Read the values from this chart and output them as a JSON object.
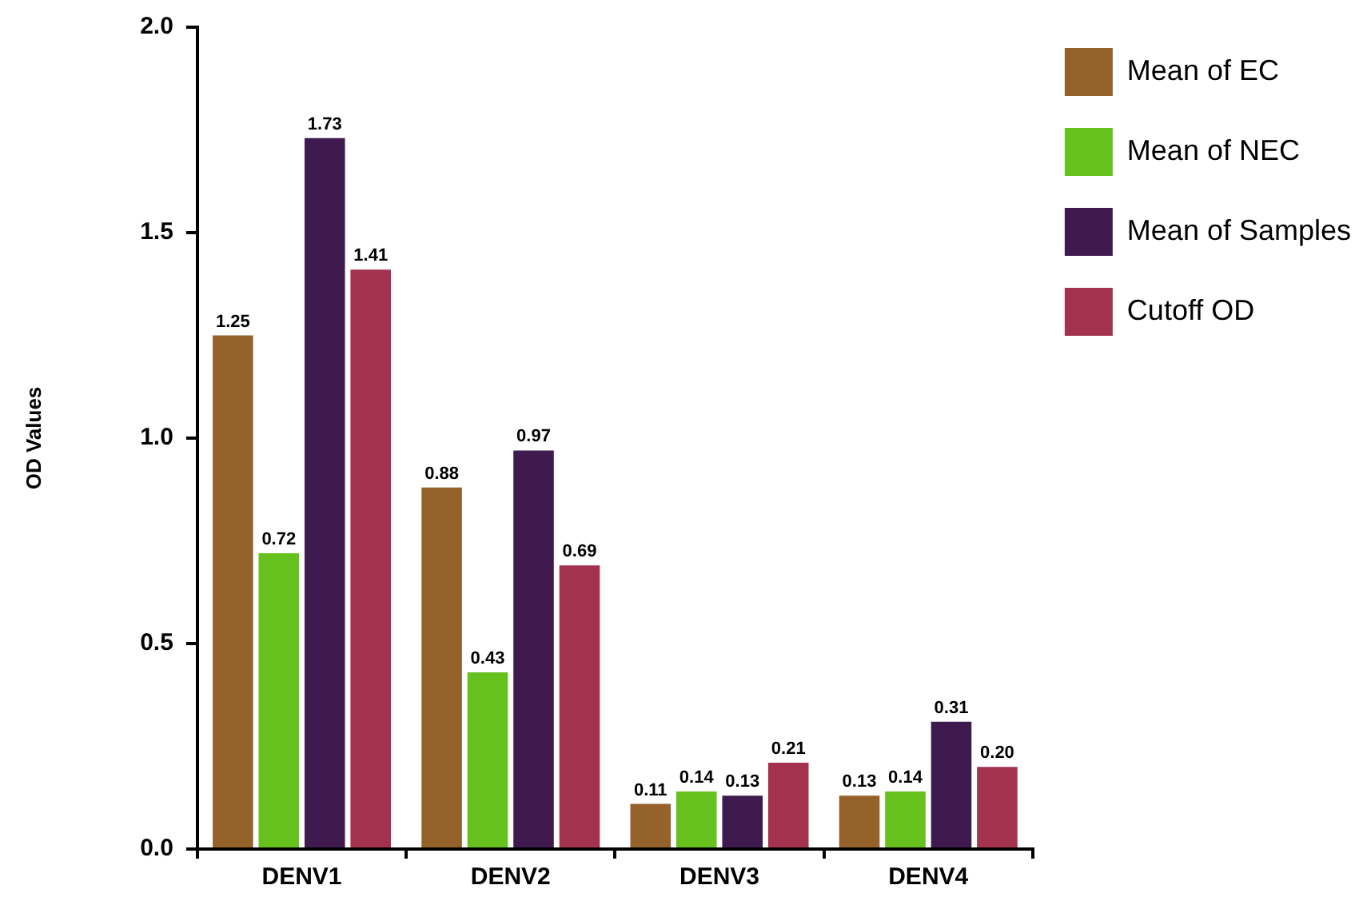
{
  "chart_data": {
    "type": "bar",
    "ylabel": "OD Values",
    "categories": [
      "DENV1",
      "DENV2",
      "DENV3",
      "DENV4"
    ],
    "series": [
      {
        "name": "Mean of EC",
        "color": "#94622a",
        "values": [
          1.25,
          0.88,
          0.11,
          0.13
        ],
        "value_labels": [
          "1.25",
          "0.88",
          "0.11",
          "0.13"
        ]
      },
      {
        "name": "Mean of NEC",
        "color": "#66c01e",
        "values": [
          0.72,
          0.43,
          0.14,
          0.14
        ],
        "value_labels": [
          "0.72",
          "0.43",
          "0.14",
          "0.14"
        ]
      },
      {
        "name": "Mean of Samples",
        "color": "#3f1a4f",
        "values": [
          1.73,
          0.97,
          0.13,
          0.31
        ],
        "value_labels": [
          "1.73",
          "0.97",
          "0.13",
          "0.31"
        ]
      },
      {
        "name": "Cutoff OD",
        "color": "#a2324e",
        "values": [
          1.41,
          0.69,
          0.21,
          0.2
        ],
        "value_labels": [
          "1.41",
          "0.69",
          "0.21",
          "0.20"
        ]
      }
    ],
    "ylim": [
      0,
      2
    ],
    "yticks": [
      {
        "value": 0,
        "label": "0.0"
      },
      {
        "value": 0.5,
        "label": "0.5"
      },
      {
        "value": 1,
        "label": "1.0"
      },
      {
        "value": 1.5,
        "label": "1.5"
      },
      {
        "value": 2,
        "label": "2.0"
      }
    ],
    "legend": "top right"
  }
}
